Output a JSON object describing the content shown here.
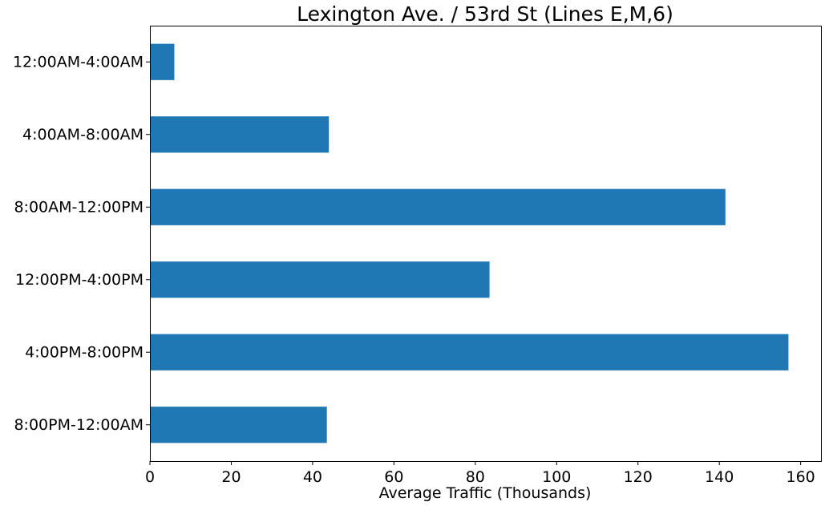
{
  "chart_data": {
    "type": "bar",
    "orientation": "horizontal",
    "title": "Lexington Ave. / 53rd St (Lines E,M,6)",
    "xlabel": "Average Traffic (Thousands)",
    "ylabel": "",
    "categories": [
      "12:00AM-4:00AM",
      "4:00AM-8:00AM",
      "8:00AM-12:00PM",
      "12:00PM-4:00PM",
      "4:00PM-8:00PM",
      "8:00PM-12:00AM"
    ],
    "values": [
      6,
      44,
      141.5,
      83.5,
      157,
      43.5
    ],
    "xlim": [
      0,
      165
    ],
    "xticks": [
      0,
      20,
      40,
      60,
      80,
      100,
      120,
      140,
      160
    ],
    "xtick_labels": [
      "0",
      "20",
      "40",
      "60",
      "80",
      "100",
      "120",
      "140",
      "160"
    ],
    "bar_color": "#1f77b4",
    "grid": false,
    "legend": "none"
  }
}
